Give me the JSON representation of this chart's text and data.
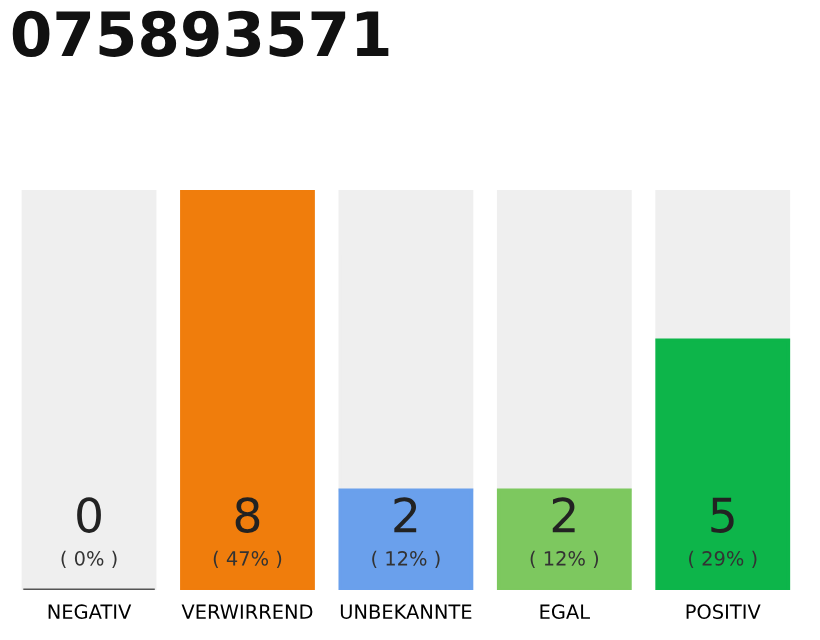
{
  "chart_data": {
    "type": "bar",
    "title": "075893571",
    "stacked": true,
    "categories": [
      "NEGATIV",
      "VERWIRREND",
      "UNBEKANNTE",
      "EGAL",
      "POSITIV"
    ],
    "series": [
      {
        "colors": [
          "#555555",
          "#f07d0c",
          "#6aa0ec",
          "#7dc85f",
          "#0db54a"
        ],
        "values": [
          0,
          8,
          2,
          2,
          5
        ],
        "value_labels": [
          "0\n( 0% )",
          "8\n( 47% )",
          "2\n( 12% )",
          "2\n( 12% )",
          "5\n( 29% )"
        ]
      },
      {
        "color": "#efefef",
        "values": [
          8,
          0,
          6,
          6,
          3
        ]
      }
    ],
    "legend": false
  }
}
